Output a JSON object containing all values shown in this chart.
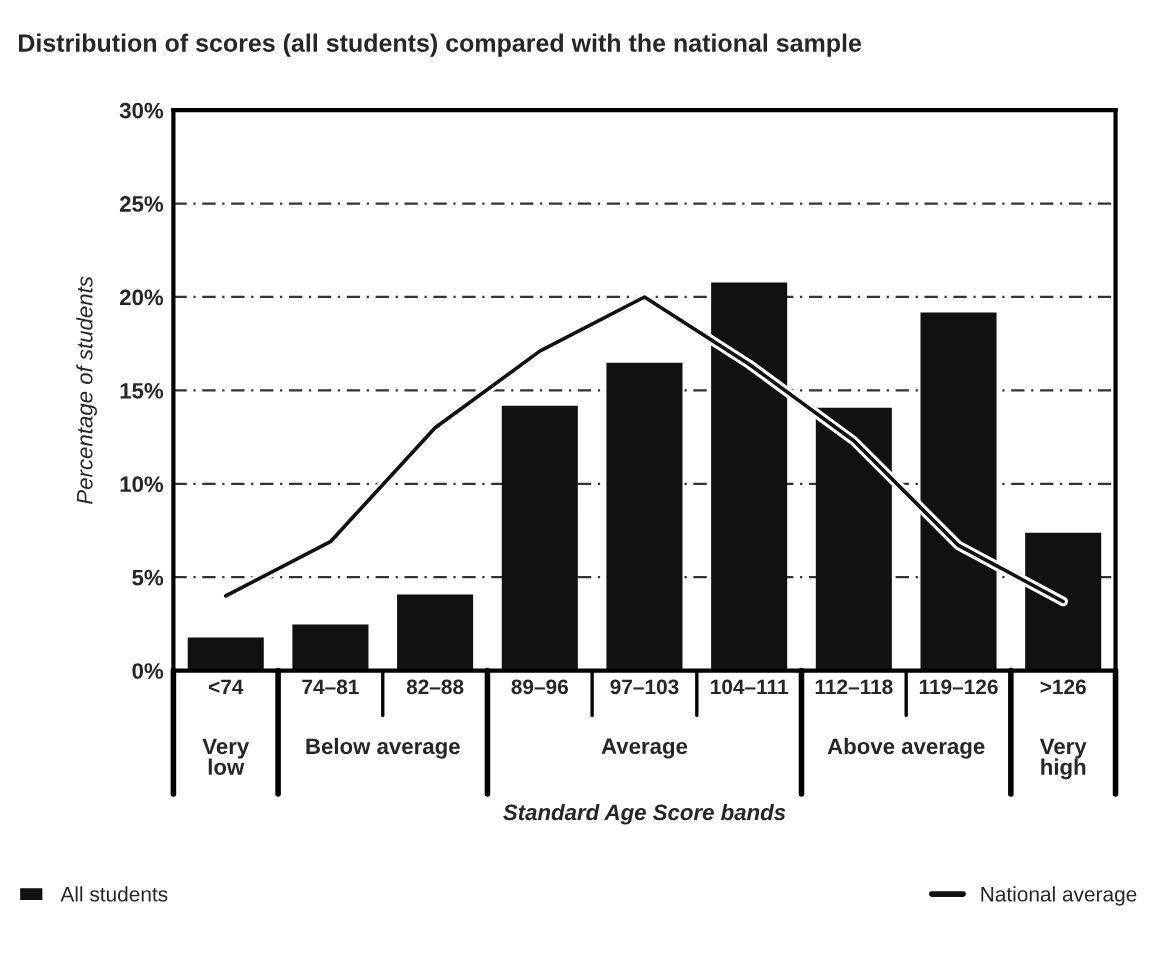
{
  "chart_data": {
    "type": "bar",
    "title": "Distribution of scores (all students) compared with the national sample",
    "xlabel": "Standard Age Score bands",
    "ylabel": "Percentage of students",
    "categories": [
      "<74",
      "74–81",
      "82–88",
      "89–96",
      "97–103",
      "104–111",
      "112–118",
      "119–126",
      ">126"
    ],
    "series": [
      {
        "name": "All students",
        "color": "#111111",
        "values": [
          1.7,
          2.4,
          4.0,
          14.1,
          16.4,
          20.7,
          14.0,
          19.1,
          7.3
        ]
      },
      {
        "name": "National average",
        "type": "line",
        "color": "#111111",
        "values": [
          4.0,
          6.9,
          13.0,
          17.1,
          20.0,
          16.4,
          12.3,
          6.7,
          3.7
        ]
      }
    ],
    "annotations": [
      "Very\nlow",
      "Below average",
      "Average",
      "Above average",
      "Very\nhigh"
    ],
    "ylim": [
      0,
      30
    ],
    "yticks": [
      {
        "value": 0,
        "label": "0%"
      },
      {
        "value": 5,
        "label": "5%"
      },
      {
        "value": 10,
        "label": "10%"
      },
      {
        "value": 15,
        "label": "15%"
      },
      {
        "value": 20,
        "label": "20%"
      },
      {
        "value": 25,
        "label": "25%"
      },
      {
        "value": 30,
        "label": "30%"
      }
    ],
    "grid": "y",
    "legend": "bottom",
    "marker": "none",
    "line_style": "solid"
  }
}
